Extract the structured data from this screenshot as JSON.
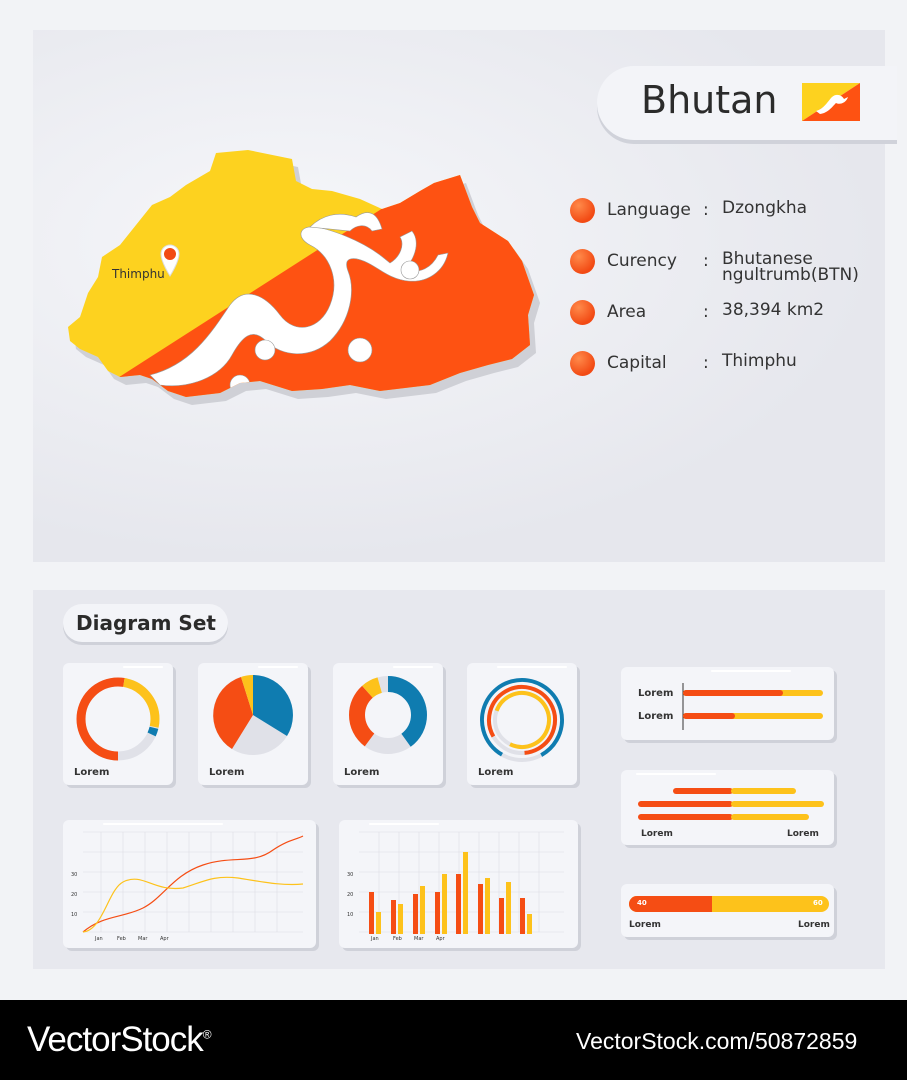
{
  "country": {
    "name": "Bhutan",
    "flag_icon": "bhutan-flag-icon"
  },
  "map": {
    "city_label": "Thimphu",
    "colors": {
      "yellow": "#fdd21f",
      "orange": "#fe5212"
    }
  },
  "info": [
    {
      "label": "Language",
      "value": "Dzongkha"
    },
    {
      "label": "Curency",
      "value": "Bhutanese ngultrumb(BTN)"
    },
    {
      "label": "Area",
      "value": "38,394 km2"
    },
    {
      "label": "Capital",
      "value": "Thimphu"
    }
  ],
  "info_colon": ":",
  "diagram": {
    "title": "Diagram Set",
    "card_caption": "Lorem",
    "bar_a_labels": [
      "Lorem",
      "Lorem"
    ],
    "bar_b_labels": [
      "Lorem",
      "Lorem"
    ],
    "bar_c": {
      "left_value": "40",
      "right_value": "60",
      "labels": [
        "Lorem",
        "Lorem"
      ]
    },
    "y_ticks": [
      "30",
      "20",
      "10"
    ],
    "x_ticks": [
      "Jan",
      "Feb",
      "Mar",
      "Apr"
    ]
  },
  "colors": {
    "accent_orange": "#f54d14",
    "accent_yellow": "#fdc21b",
    "accent_blue": "#0f7cb0"
  },
  "footer": {
    "brand": "VectorStock",
    "registered": "®",
    "image_id": "VectorStock.com/50872859"
  }
}
